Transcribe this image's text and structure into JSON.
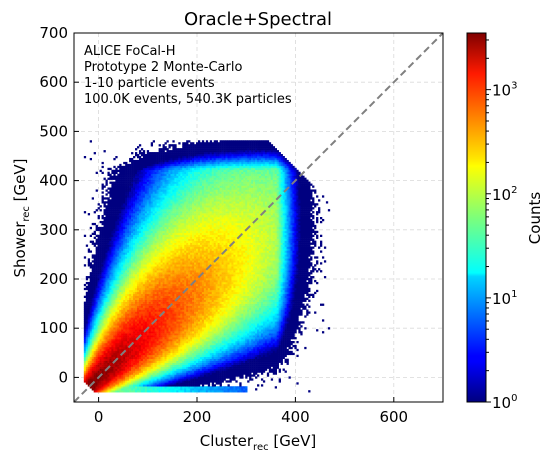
{
  "chart_data": {
    "type": "heatmap",
    "title": "Oracle+Spectral",
    "xlabel": {
      "base": "Cluster",
      "sub": "rec",
      "unit": " [GeV]"
    },
    "ylabel": {
      "base": "Shower",
      "sub": "rec",
      "unit": " [GeV]"
    },
    "xlim": [
      -50,
      700
    ],
    "ylim": [
      -50,
      700
    ],
    "xticks": [
      0,
      200,
      400,
      600
    ],
    "yticks": [
      0,
      100,
      200,
      300,
      400,
      500,
      600,
      700
    ],
    "grid": true,
    "annotations": [
      "ALICE FoCal-H",
      "Prototype 2 Monte-Carlo",
      "1-10 particle events",
      "100.0K events, 540.3K particles"
    ],
    "reference_line": {
      "style": "dashed",
      "color": "#808080",
      "from": [
        -50,
        -50
      ],
      "to": [
        700,
        700
      ]
    },
    "colorbar": {
      "label": "Counts",
      "scale": "log",
      "range": [
        1,
        3500
      ],
      "ticks": [
        {
          "value": 1,
          "base": "10",
          "exp": "0"
        },
        {
          "value": 10,
          "base": "10",
          "exp": "1"
        },
        {
          "value": 100,
          "base": "10",
          "exp": "2"
        },
        {
          "value": 1000,
          "base": "10",
          "exp": "3"
        }
      ],
      "colormap": "jet"
    },
    "distribution": {
      "description_points": [
        [
          0,
          0
        ],
        [
          150,
          150
        ],
        [
          300,
          300
        ]
      ],
      "max_counts": 3500
    }
  }
}
